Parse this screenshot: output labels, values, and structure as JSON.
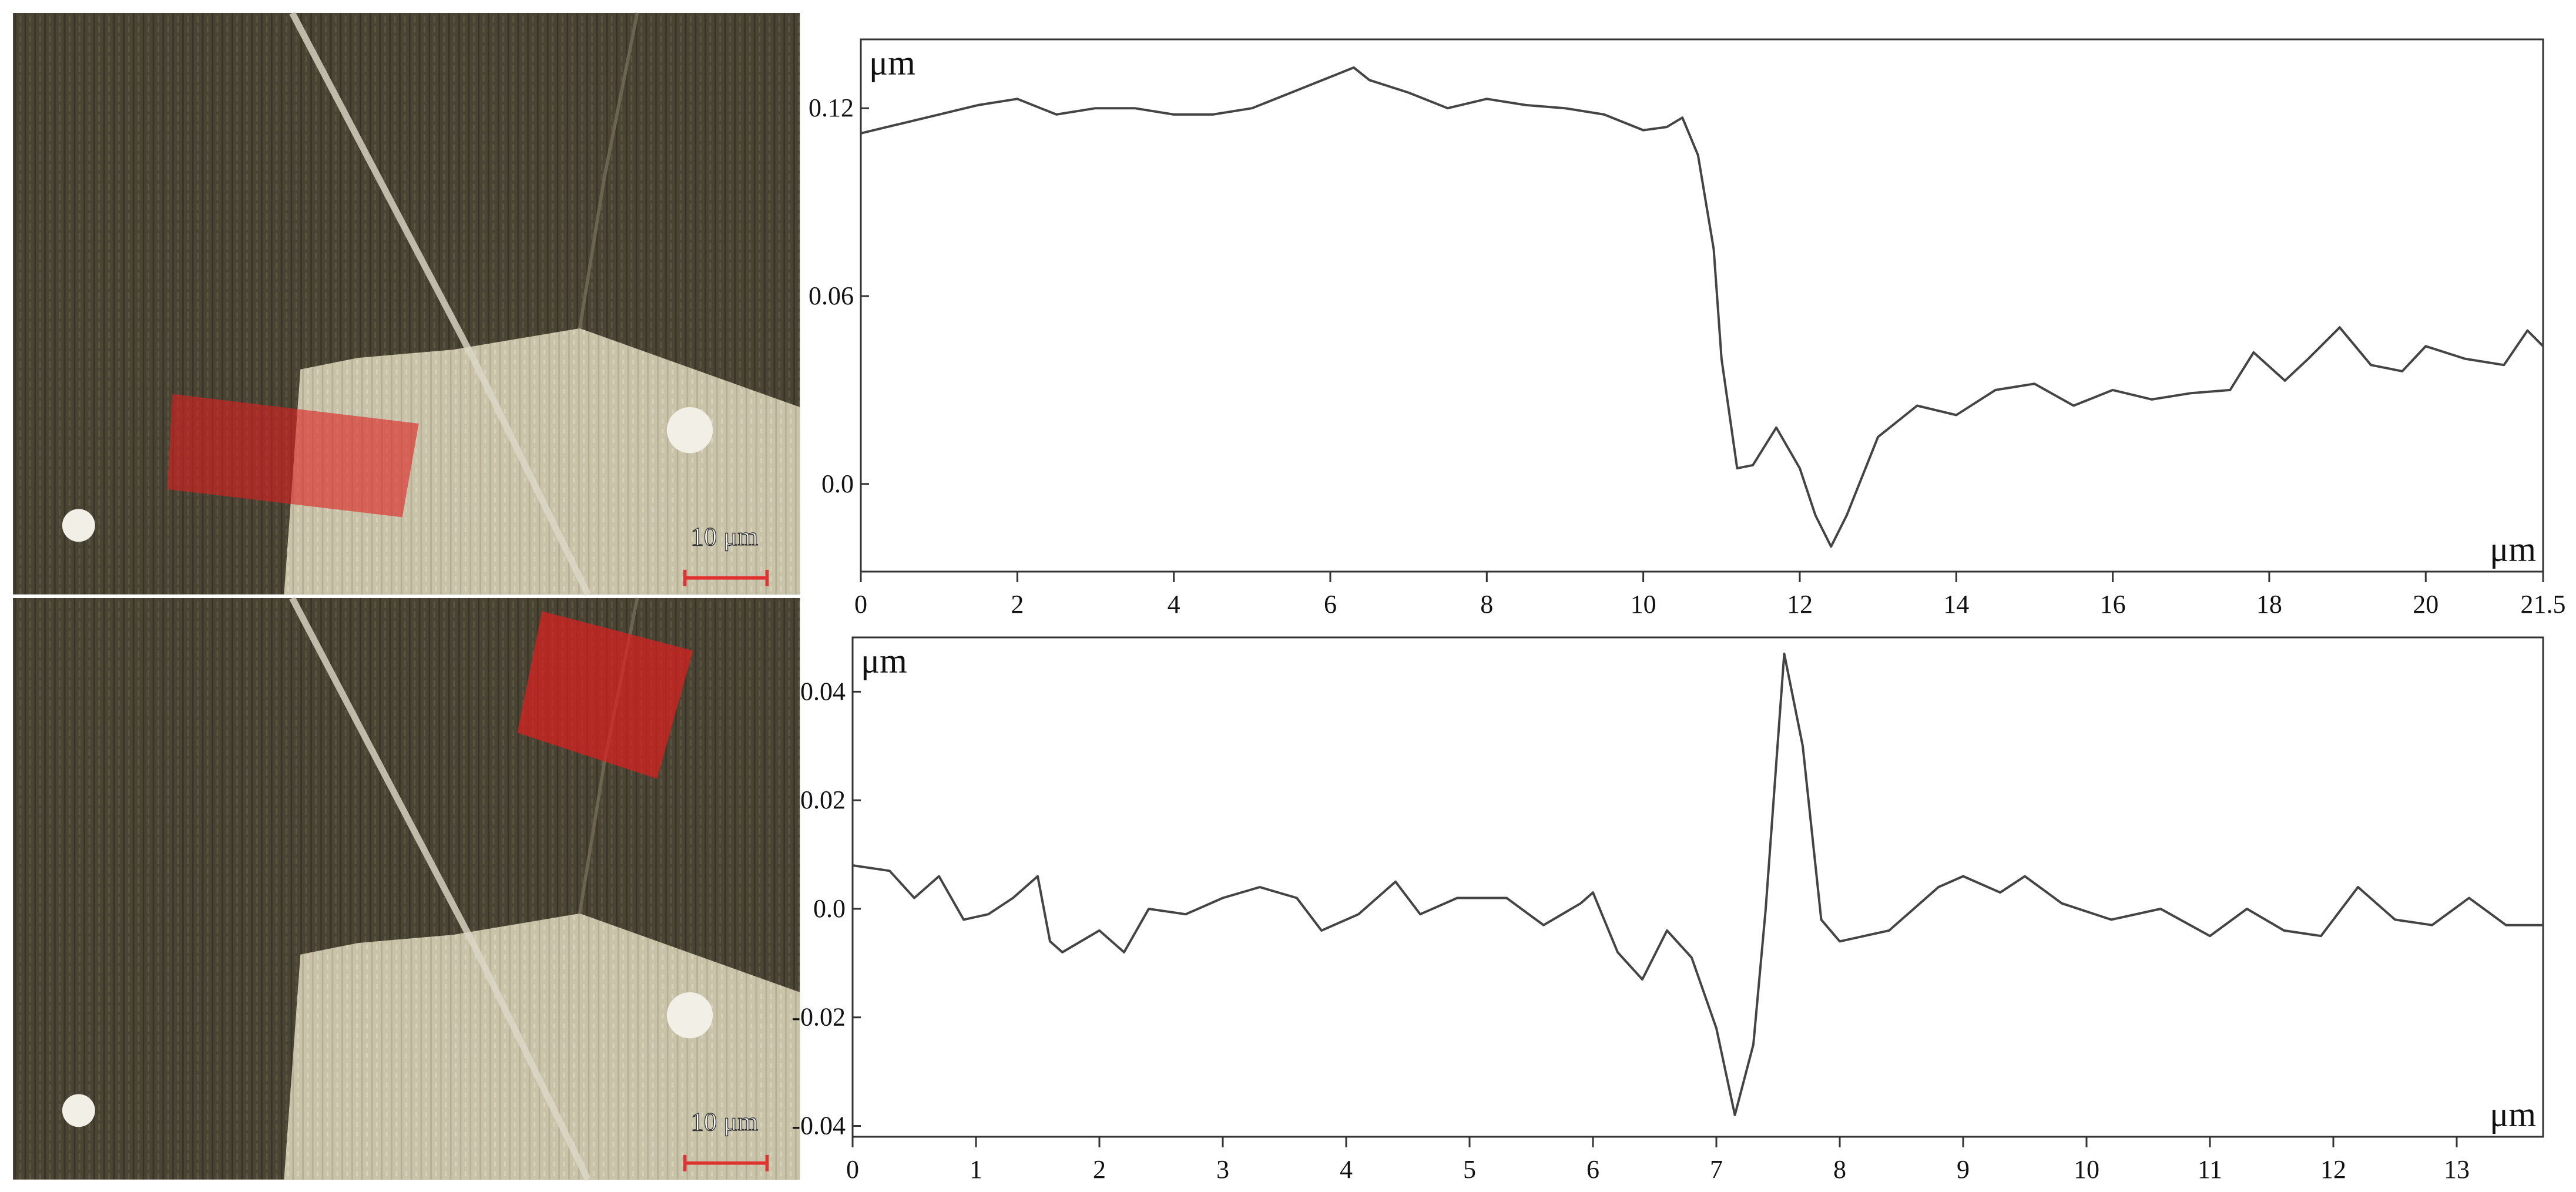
{
  "images": [
    {
      "scale_label": "10 μm"
    },
    {
      "scale_label": "10 μm"
    }
  ],
  "chart_data": [
    {
      "type": "line",
      "y_label": "μm",
      "x_label": "μm",
      "color": "#444444",
      "x": [
        0,
        0.5,
        1,
        1.5,
        2,
        2.5,
        3,
        3.5,
        4,
        4.5,
        5,
        5.5,
        6,
        6.3,
        6.5,
        7,
        7.5,
        8,
        8.5,
        9,
        9.5,
        10,
        10.3,
        10.5,
        10.7,
        10.9,
        11.0,
        11.2,
        11.4,
        11.7,
        12.0,
        12.2,
        12.4,
        12.6,
        13,
        13.5,
        14,
        14.5,
        15,
        15.5,
        16,
        16.5,
        17,
        17.5,
        17.8,
        18.2,
        18.5,
        18.9,
        19.3,
        19.7,
        20,
        20.5,
        21,
        21.3,
        21.5
      ],
      "values": [
        0.112,
        0.115,
        0.118,
        0.121,
        0.123,
        0.118,
        0.12,
        0.12,
        0.118,
        0.118,
        0.12,
        0.125,
        0.13,
        0.133,
        0.129,
        0.125,
        0.12,
        0.123,
        0.121,
        0.12,
        0.118,
        0.113,
        0.114,
        0.117,
        0.105,
        0.075,
        0.04,
        0.005,
        0.006,
        0.018,
        0.005,
        -0.01,
        -0.02,
        -0.01,
        0.015,
        0.025,
        0.022,
        0.03,
        0.032,
        0.025,
        0.03,
        0.027,
        0.029,
        0.03,
        0.042,
        0.033,
        0.04,
        0.05,
        0.038,
        0.036,
        0.044,
        0.04,
        0.038,
        0.049,
        0.044
      ],
      "xlim": [
        0,
        21.5
      ],
      "ylim": [
        -0.028,
        0.142
      ],
      "xticks": [
        0,
        2,
        4,
        6,
        8,
        10,
        12,
        14,
        16,
        18,
        20,
        21.5
      ],
      "yticks": [
        {
          "value": 0,
          "label": "0.0"
        },
        0.06,
        0.12
      ]
    },
    {
      "type": "line",
      "y_label": "μm",
      "x_label": "μm",
      "color": "#444444",
      "x": [
        0,
        0.3,
        0.5,
        0.7,
        0.9,
        1.1,
        1.3,
        1.5,
        1.6,
        1.7,
        2,
        2.2,
        2.4,
        2.7,
        3.0,
        3.3,
        3.6,
        3.8,
        4.1,
        4.4,
        4.6,
        4.9,
        5.3,
        5.6,
        5.9,
        6.0,
        6.2,
        6.4,
        6.6,
        6.8,
        7.0,
        7.15,
        7.3,
        7.4,
        7.55,
        7.7,
        7.85,
        8.0,
        8.4,
        8.8,
        9.0,
        9.3,
        9.5,
        9.8,
        10.2,
        10.6,
        11.0,
        11.3,
        11.6,
        11.9,
        12.2,
        12.5,
        12.8,
        13.1,
        13.4,
        13.7
      ],
      "values": [
        0.008,
        0.007,
        0.002,
        0.006,
        -0.002,
        -0.001,
        0.002,
        0.006,
        -0.006,
        -0.008,
        -0.004,
        -0.008,
        0.0,
        -0.001,
        0.002,
        0.004,
        0.002,
        -0.004,
        -0.001,
        0.005,
        -0.001,
        0.002,
        0.002,
        -0.003,
        0.001,
        0.003,
        -0.008,
        -0.013,
        -0.004,
        -0.009,
        -0.022,
        -0.038,
        -0.025,
        0.0,
        0.047,
        0.03,
        -0.002,
        -0.006,
        -0.004,
        0.004,
        0.006,
        0.003,
        0.006,
        0.001,
        -0.002,
        0.0,
        -0.005,
        0.0,
        -0.004,
        -0.005,
        0.004,
        -0.002,
        -0.003,
        0.002,
        -0.003,
        -0.003
      ],
      "xlim": [
        0,
        13.7
      ],
      "ylim": [
        -0.042,
        0.05
      ],
      "xticks": [
        0,
        1,
        2,
        3,
        4,
        5,
        6,
        7,
        8,
        9,
        10,
        11,
        12,
        13
      ],
      "yticks": [
        -0.04,
        -0.02,
        {
          "value": 0,
          "label": "0.0"
        },
        0.02,
        0.04
      ]
    }
  ]
}
